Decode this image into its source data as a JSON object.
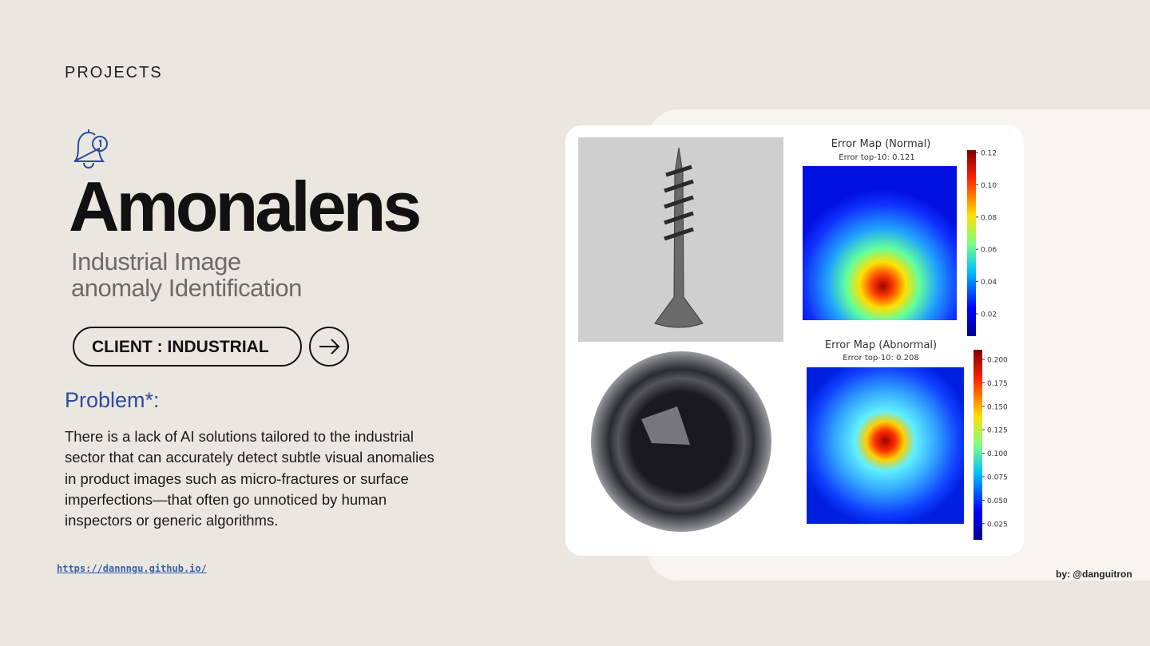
{
  "header": {
    "section": "PROJECTS",
    "title": "Amonalens",
    "subtitle_lines": [
      "Industrial Image",
      "anomaly Identification"
    ]
  },
  "client_button": {
    "label": "CLIENT : INDUSTRIAL"
  },
  "problem": {
    "heading": "Problem*:",
    "lines": [
      "There is a lack of AI solutions tailored to the industrial",
      "sector that can accurately detect subtle visual anomalies",
      "in product images such as micro-fractures or surface",
      "imperfections—that often go unnoticed by human",
      "inspectors or generic algorithms."
    ]
  },
  "link": "https://dannngu.github.io/",
  "credit": "by: @danguitron",
  "figure": {
    "normal": {
      "title": "Error Map (Normal)",
      "subtitle": "Error top-10: 0.121",
      "colorbar_ticks": [
        "0.12",
        "0.10",
        "0.08",
        "0.06",
        "0.04",
        "0.02"
      ]
    },
    "abnormal": {
      "title": "Error Map (Abnormal)",
      "subtitle": "Error top-10: 0.208",
      "colorbar_ticks": [
        "0.200",
        "0.175",
        "0.150",
        "0.125",
        "0.100",
        "0.075",
        "0.050",
        "0.025"
      ]
    }
  }
}
